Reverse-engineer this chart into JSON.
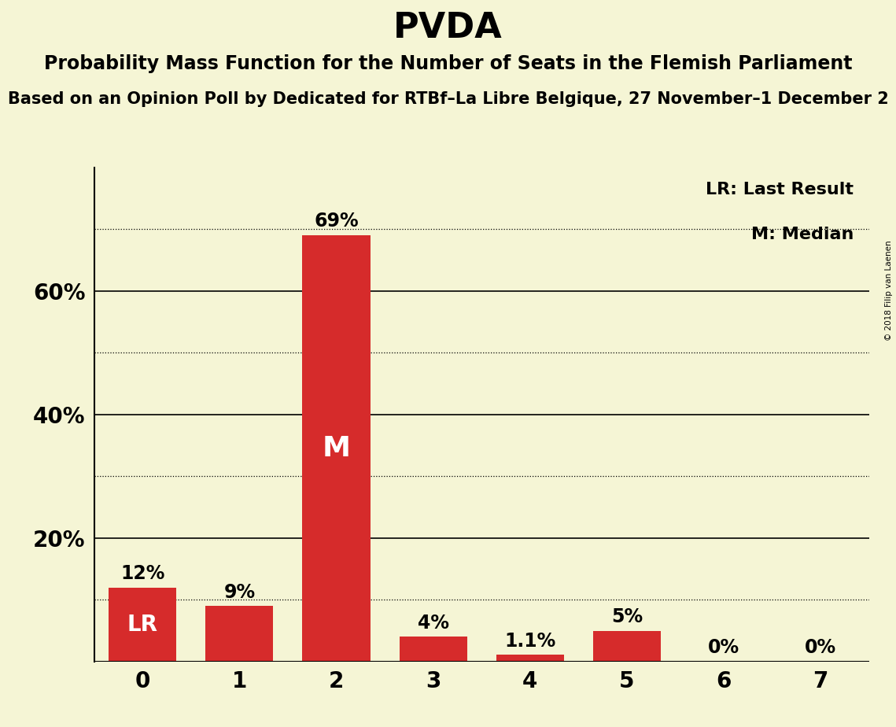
{
  "title": "PVDA",
  "subtitle1": "Probability Mass Function for the Number of Seats in the Flemish Parliament",
  "subtitle2": "Based on an Opinion Poll by Dedicated for RTBf–La Libre Belgique, 27 November–1 December 2",
  "copyright": "© 2018 Filip van Laenen",
  "categories": [
    0,
    1,
    2,
    3,
    4,
    5,
    6,
    7
  ],
  "values": [
    0.12,
    0.09,
    0.69,
    0.04,
    0.011,
    0.05,
    0.0,
    0.0
  ],
  "bar_labels": [
    "12%",
    "9%",
    "69%",
    "4%",
    "1.1%",
    "5%",
    "0%",
    "0%"
  ],
  "bar_color": "#d62b2b",
  "background_color": "#f5f5d5",
  "median_bar": 2,
  "lr_bar": 0,
  "median_label": "M",
  "lr_label": "LR",
  "legend_lr": "LR: Last Result",
  "legend_m": "M: Median",
  "ylim": [
    0,
    0.8
  ],
  "yticks": [
    0.0,
    0.2,
    0.4,
    0.6
  ],
  "ytick_labels": [
    "",
    "20%",
    "40%",
    "60%"
  ],
  "solid_gridlines": [
    0.2,
    0.4,
    0.6
  ],
  "dotted_gridlines": [
    0.1,
    0.3,
    0.5,
    0.7
  ],
  "title_fontsize": 32,
  "subtitle1_fontsize": 17,
  "subtitle2_fontsize": 15,
  "axis_label_fontsize": 20,
  "bar_label_fontsize": 17,
  "inside_label_fontsize": 20,
  "legend_fontsize": 16
}
